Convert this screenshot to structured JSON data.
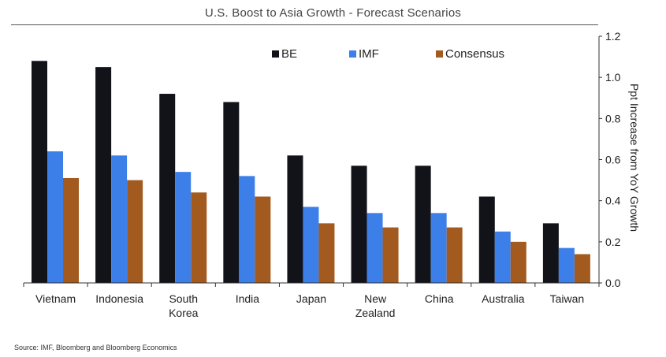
{
  "chart_data": {
    "type": "bar",
    "title": "U.S. Boost to Asia Growth - Forecast Scenarios",
    "ylabel": "Ppt Increase from YoY Growth",
    "xlabel": "",
    "categories": [
      [
        "Vietnam"
      ],
      [
        "Indonesia"
      ],
      [
        "South",
        "Korea"
      ],
      [
        "India"
      ],
      [
        "Japan"
      ],
      [
        "New",
        "Zealand"
      ],
      [
        "China"
      ],
      [
        "Australia"
      ],
      [
        "Taiwan"
      ]
    ],
    "series": [
      {
        "name": "BE",
        "color": "#121319",
        "values": [
          1.08,
          1.05,
          0.92,
          0.88,
          0.62,
          0.57,
          0.57,
          0.42,
          0.29
        ]
      },
      {
        "name": "IMF",
        "color": "#3d7fe8",
        "values": [
          0.64,
          0.62,
          0.54,
          0.52,
          0.37,
          0.34,
          0.34,
          0.25,
          0.17
        ]
      },
      {
        "name": "Consensus",
        "color": "#a35a1e",
        "values": [
          0.51,
          0.5,
          0.44,
          0.42,
          0.29,
          0.27,
          0.27,
          0.2,
          0.14
        ]
      }
    ],
    "ylim": [
      0,
      1.2
    ],
    "yticks": [
      "0.0",
      "0.2",
      "0.4",
      "0.6",
      "0.8",
      "1.0",
      "1.2"
    ],
    "y_axis_side": "right",
    "grid": false,
    "legend_position": "top-right"
  },
  "source": "Source: IMF, Bloomberg and Bloomberg Economics"
}
